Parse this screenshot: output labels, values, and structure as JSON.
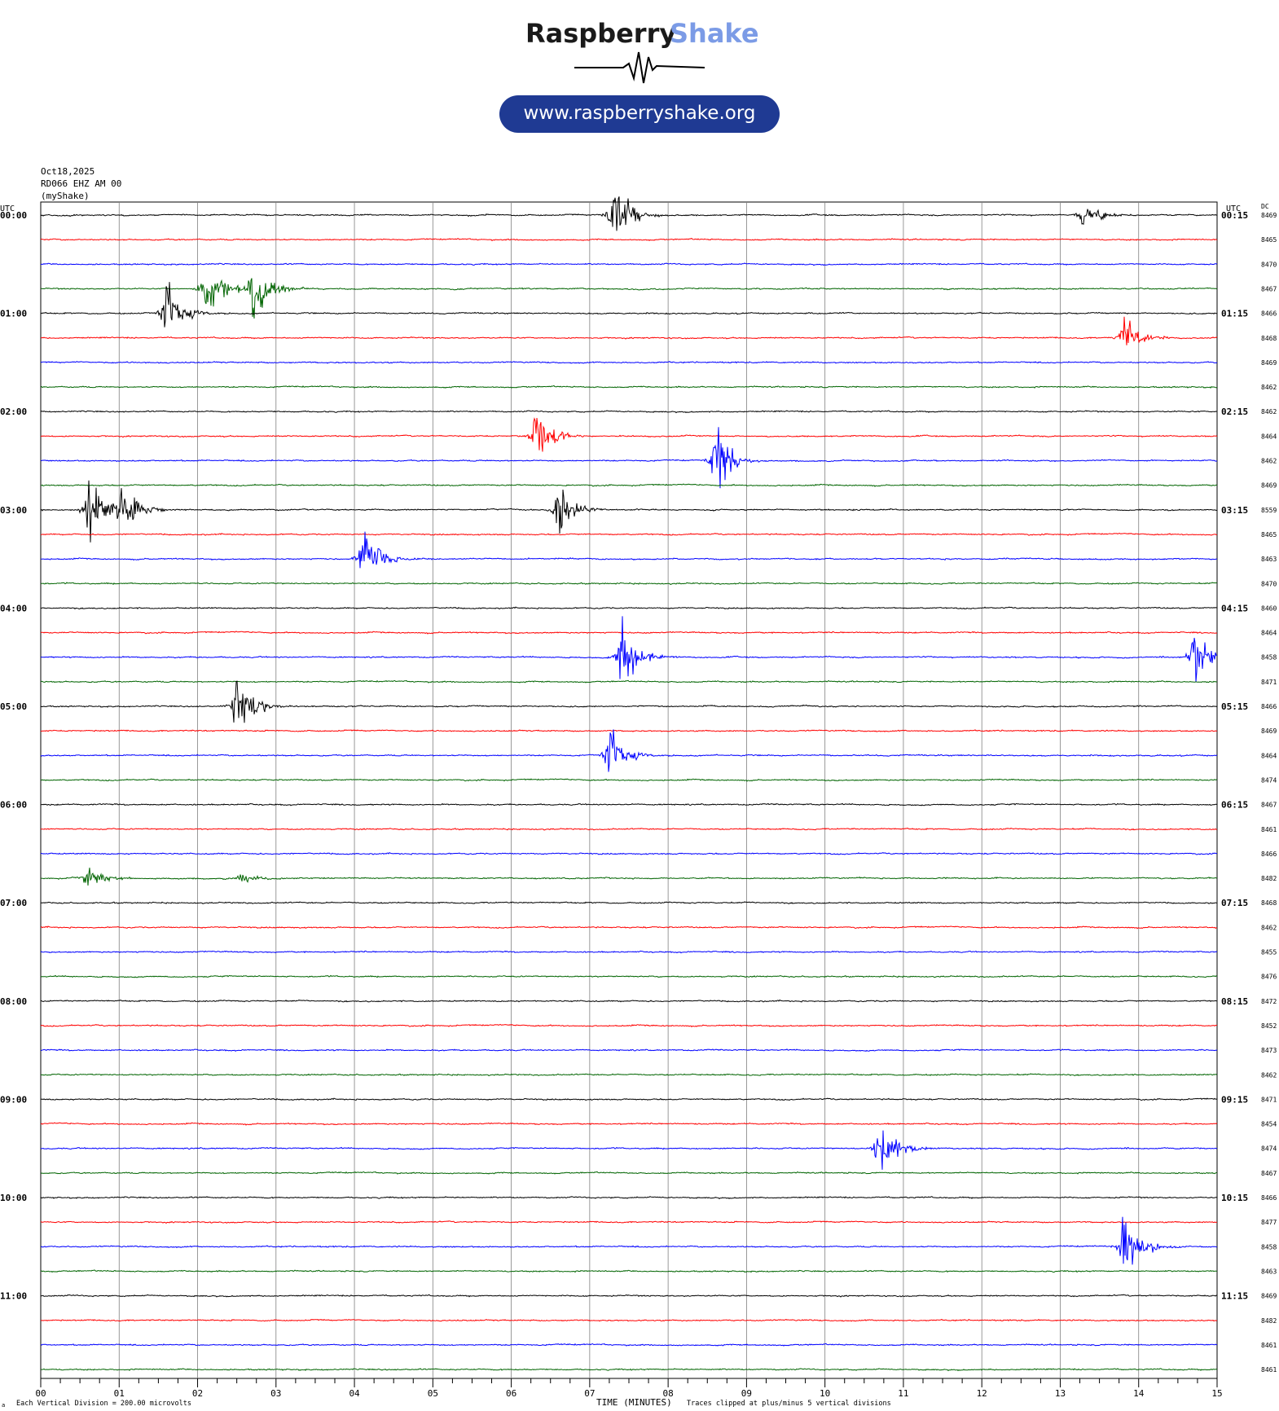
{
  "header": {
    "brand_word1": "Raspberry",
    "brand_word2": "Shake",
    "website": "www.raspberryshake.org"
  },
  "station": {
    "date": "Oct18,2025",
    "channel": "RD066 EHZ AM 00",
    "source": "(myShake)"
  },
  "footer": {
    "vertical_division": "Each Vertical Division =  200.00 microvolts",
    "xlabel": "TIME (MINUTES)",
    "clip_note": "Traces clipped at plus/minus 5 vertical divisions",
    "corner_mark": "a"
  },
  "colors": {
    "brand_black": "#1a1a1a",
    "brand_blue": "#7b9be6",
    "pill": "#1f3a93",
    "trace_cycle": [
      "#000000",
      "#ff0000",
      "#0000ff",
      "#006400"
    ],
    "grid": "#808080"
  },
  "chart_data": {
    "type": "line",
    "subtype": "helicorder",
    "xlabel": "TIME (MINUTES)",
    "x_ticks": [
      "00",
      "01",
      "02",
      "03",
      "04",
      "05",
      "06",
      "07",
      "08",
      "09",
      "10",
      "11",
      "12",
      "13",
      "14",
      "15"
    ],
    "xlim": [
      0,
      15
    ],
    "left_axis_title": "UTC",
    "right_axis_title": "UTC",
    "dc_title": "DC",
    "minutes_per_line": 15,
    "n_lines": 48,
    "left_labels": [
      "00:00",
      "01:00",
      "02:00",
      "03:00",
      "04:00",
      "05:00",
      "06:00",
      "07:00",
      "08:00",
      "09:00",
      "10:00",
      "11:00"
    ],
    "right_labels": [
      "00:15",
      "01:15",
      "02:15",
      "03:15",
      "04:15",
      "05:15",
      "06:15",
      "07:15",
      "08:15",
      "09:15",
      "10:15",
      "11:15"
    ],
    "dc_offsets": [
      8469,
      8465,
      8470,
      8467,
      8466,
      8468,
      8469,
      8462,
      8462,
      8464,
      8462,
      8469,
      8559,
      8465,
      8463,
      8470,
      8460,
      8464,
      8458,
      8471,
      8466,
      8469,
      8464,
      8474,
      8467,
      8461,
      8466,
      8482,
      8468,
      8462,
      8455,
      8476,
      8472,
      8452,
      8473,
      8462,
      8471,
      8454,
      8474,
      8467,
      8466,
      8477,
      8458,
      8463,
      8469,
      8482,
      8461,
      8461
    ],
    "grid": true,
    "events": [
      {
        "line": 0,
        "minute": 7.3,
        "amp": 5.0
      },
      {
        "line": 0,
        "minute": 13.3,
        "amp": 2.4
      },
      {
        "line": 3,
        "minute": 2.1,
        "amp": 4.8
      },
      {
        "line": 3,
        "minute": 2.7,
        "amp": 5.0
      },
      {
        "line": 4,
        "minute": 1.6,
        "amp": 4.5
      },
      {
        "line": 5,
        "minute": 13.8,
        "amp": 3.2
      },
      {
        "line": 9,
        "minute": 6.3,
        "amp": 4.8
      },
      {
        "line": 10,
        "minute": 8.6,
        "amp": 5.0
      },
      {
        "line": 12,
        "minute": 0.6,
        "amp": 5.0
      },
      {
        "line": 12,
        "minute": 1.0,
        "amp": 5.0
      },
      {
        "line": 12,
        "minute": 6.6,
        "amp": 4.0
      },
      {
        "line": 14,
        "minute": 4.1,
        "amp": 5.0
      },
      {
        "line": 18,
        "minute": 7.4,
        "amp": 5.0
      },
      {
        "line": 18,
        "minute": 14.7,
        "amp": 5.0
      },
      {
        "line": 20,
        "minute": 2.5,
        "amp": 5.0
      },
      {
        "line": 22,
        "minute": 7.25,
        "amp": 4.0
      },
      {
        "line": 27,
        "minute": 0.6,
        "amp": 1.8
      },
      {
        "line": 27,
        "minute": 2.55,
        "amp": 0.8
      },
      {
        "line": 38,
        "minute": 10.7,
        "amp": 5.0
      },
      {
        "line": 42,
        "minute": 13.8,
        "amp": 5.0
      }
    ]
  }
}
